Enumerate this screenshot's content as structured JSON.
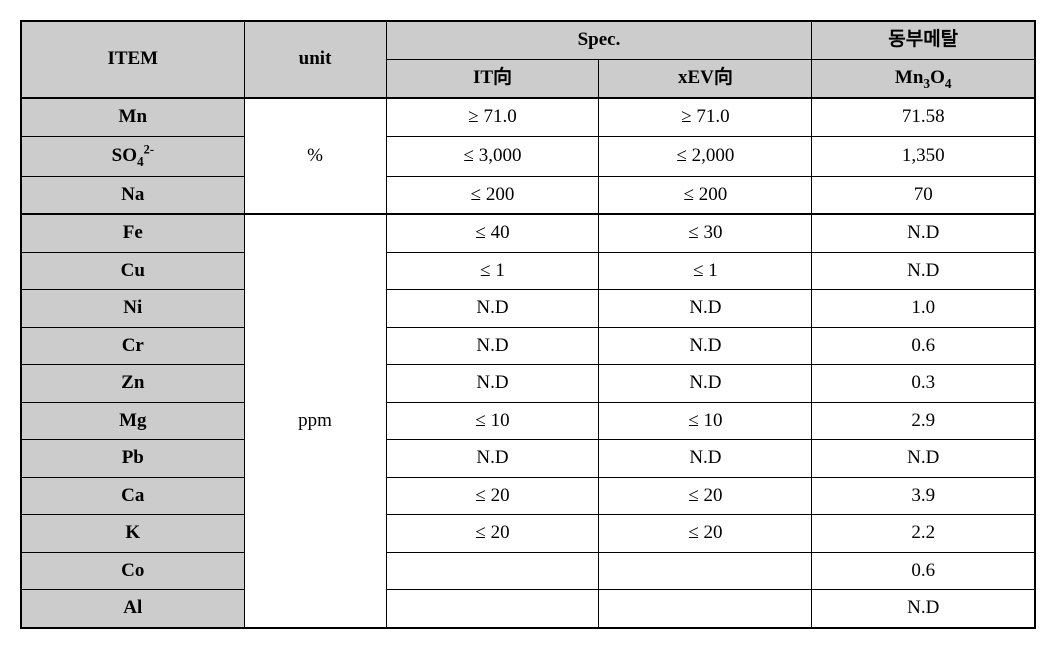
{
  "header": {
    "item": "ITEM",
    "unit": "unit",
    "spec": "Spec.",
    "spec_it": "IT向",
    "spec_xev": "xEV向",
    "company": "동부메탈",
    "product": "Mn₃O₄"
  },
  "units": {
    "percent": "%",
    "ppm": "ppm"
  },
  "rows_percent": [
    {
      "item": "Mn",
      "it": "≥ 71.0",
      "xev": "≥ 71.0",
      "result": "71.58"
    },
    {
      "item": "SO₄²⁻",
      "it": "≤ 3,000",
      "xev": "≤ 2,000",
      "result": "1,350"
    },
    {
      "item": "Na",
      "it": "≤ 200",
      "xev": "≤ 200",
      "result": "70"
    }
  ],
  "rows_ppm": [
    {
      "item": "Fe",
      "it": "≤ 40",
      "xev": "≤ 30",
      "result": "N.D"
    },
    {
      "item": "Cu",
      "it": "≤ 1",
      "xev": "≤ 1",
      "result": "N.D"
    },
    {
      "item": "Ni",
      "it": "N.D",
      "xev": "N.D",
      "result": "1.0"
    },
    {
      "item": "Cr",
      "it": "N.D",
      "xev": "N.D",
      "result": "0.6"
    },
    {
      "item": "Zn",
      "it": "N.D",
      "xev": "N.D",
      "result": "0.3"
    },
    {
      "item": "Mg",
      "it": "≤ 10",
      "xev": "≤ 10",
      "result": "2.9"
    },
    {
      "item": "Pb",
      "it": "N.D",
      "xev": "N.D",
      "result": "N.D"
    },
    {
      "item": "Ca",
      "it": "≤ 20",
      "xev": "≤ 20",
      "result": "3.9"
    },
    {
      "item": "K",
      "it": "≤ 20",
      "xev": "≤ 20",
      "result": "2.2"
    },
    {
      "item": "Co",
      "it": "",
      "xev": "",
      "result": "0.6"
    },
    {
      "item": "Al",
      "it": "",
      "xev": "",
      "result": "N.D"
    }
  ],
  "style": {
    "header_bg": "#cccccc",
    "border_color": "#000000",
    "font_family": "Times New Roman",
    "body_bg": "#ffffff"
  }
}
